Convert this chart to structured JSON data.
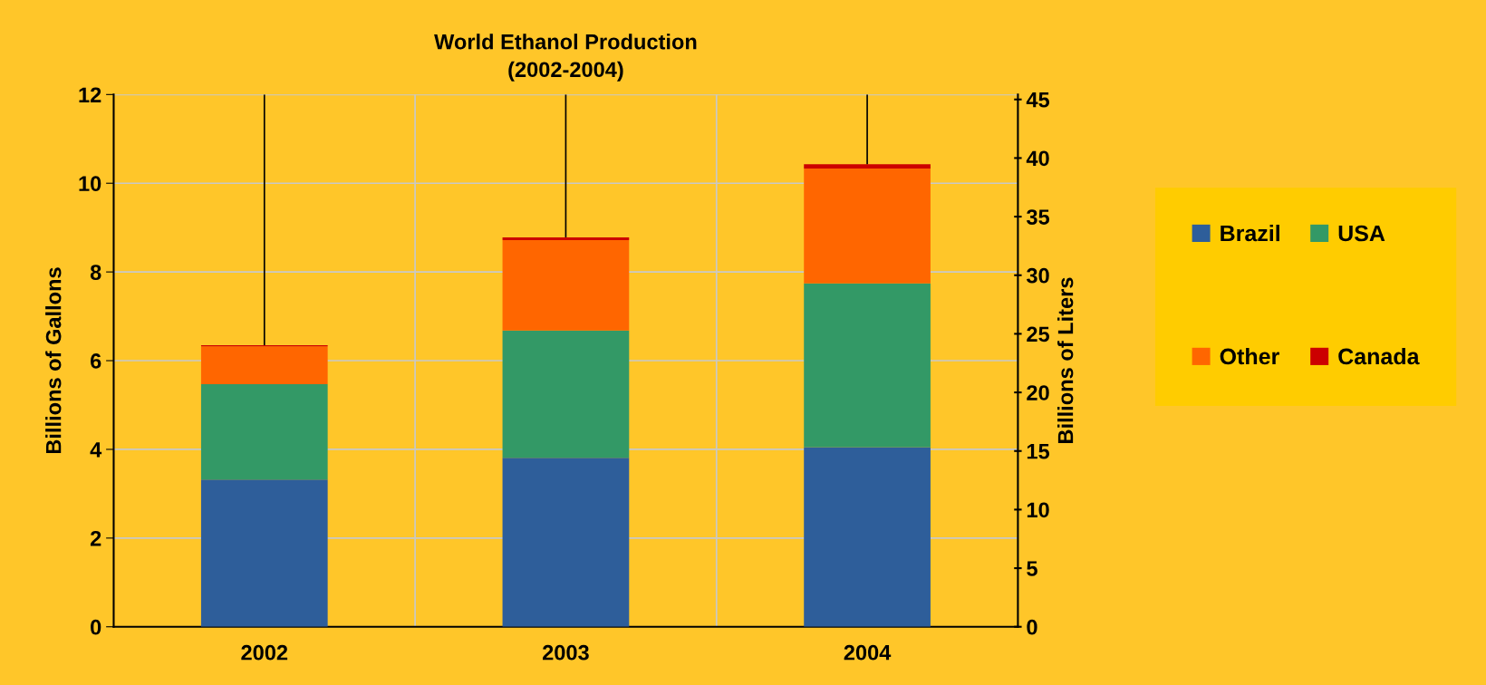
{
  "chart_data": {
    "type": "bar",
    "stacked": true,
    "title": "World Ethanol Production\n(2002-2004)",
    "ylabel": "Billions of Gallons",
    "y2label": "Billions of Liters",
    "categories": [
      "2002",
      "2003",
      "2004"
    ],
    "series": [
      {
        "name": "Brazil",
        "color": "#2e5e9a",
        "values": [
          3.32,
          3.81,
          4.05
        ]
      },
      {
        "name": "USA",
        "color": "#339966",
        "values": [
          2.15,
          2.87,
          3.69
        ]
      },
      {
        "name": "Other",
        "color": "#ff6600",
        "values": [
          0.85,
          2.04,
          2.59
        ]
      },
      {
        "name": "Canada",
        "color": "#cc0000",
        "values": [
          0.03,
          0.06,
          0.1
        ],
        "errors": [
          [
            6.35,
            12
          ],
          [
            8.78,
            12
          ],
          [
            10.43,
            12
          ]
        ]
      }
    ],
    "ylim": [
      0,
      12
    ],
    "yticks": [
      0,
      2,
      4,
      6,
      8,
      10,
      12
    ],
    "y2lim": [
      0,
      45.42
    ],
    "y2ticks": [
      0,
      5,
      10,
      15,
      20,
      25,
      30,
      35,
      40,
      45
    ],
    "grid": true,
    "legend": "right"
  }
}
